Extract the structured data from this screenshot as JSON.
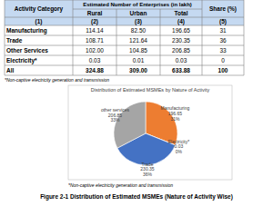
{
  "table": {
    "header": {
      "activity": "Activity Category",
      "group": "Estimated Number of Enterprises (in lakh)",
      "share": "Share (%)",
      "columns": [
        "Rural",
        "Urban",
        "Total"
      ],
      "numbers": [
        "(1)",
        "(2)",
        "(3)",
        "(4)",
        "(5)"
      ]
    },
    "rows": [
      [
        "Manufacturing",
        "114.14",
        "82.50",
        "196.65",
        "31"
      ],
      [
        "Trade",
        "108.71",
        "121.64",
        "230.35",
        "36"
      ],
      [
        "Other Services",
        "102.00",
        "104.85",
        "206.85",
        "33"
      ],
      [
        "Electricity*",
        "0.03",
        "0.01",
        "0.03",
        "0"
      ],
      [
        "All",
        "324.88",
        "309.00",
        "633.88",
        "100"
      ]
    ]
  },
  "table_note": "*Non-captive electricity generation and transmission",
  "chart_data": {
    "type": "pie",
    "title": "Distribution of Estimated MSMEs by Nature of Activity",
    "categories": [
      "Manufacturing",
      "Electricity*",
      "Trade",
      "other services"
    ],
    "values": [
      196.65,
      0.03,
      230.35,
      206.85
    ],
    "shares": [
      31,
      0,
      36,
      33
    ],
    "share_labels": [
      "31%",
      "0%",
      "36%",
      "33%"
    ],
    "colors": [
      "#ed7d31",
      "#ffc000",
      "#4472c4",
      "#a5a5a5"
    ],
    "data_labels": true
  },
  "chart_note": "*Non-captive electricity generation and transmission",
  "caption": "Figure 2-1 Distribution of Estimated MSMEs (Nature of Activity Wise)"
}
